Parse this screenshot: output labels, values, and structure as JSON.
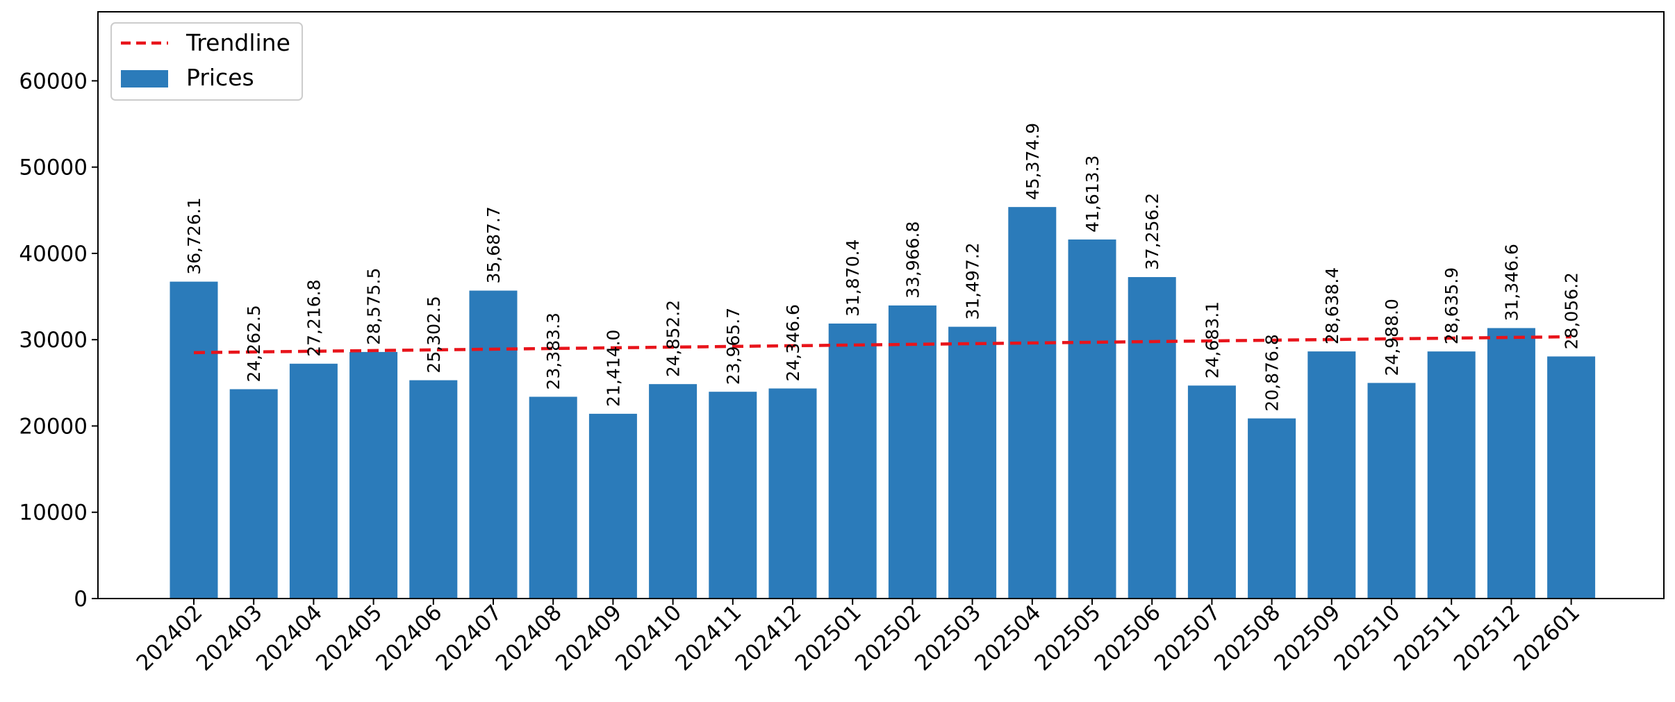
{
  "chart_data": {
    "type": "bar",
    "categories": [
      "202402",
      "202403",
      "202404",
      "202405",
      "202406",
      "202407",
      "202408",
      "202409",
      "202410",
      "202411",
      "202412",
      "202501",
      "202502",
      "202503",
      "202504",
      "202505",
      "202506",
      "202507",
      "202508",
      "202509",
      "202510",
      "202511",
      "202512",
      "202601"
    ],
    "series": [
      {
        "name": "Prices",
        "type": "bar",
        "color": "#2b7bba",
        "values": [
          36726.1,
          24262.5,
          27216.8,
          28575.5,
          25302.5,
          35687.7,
          23383.3,
          21414.0,
          24852.2,
          23965.7,
          24346.6,
          31870.4,
          33966.8,
          31497.2,
          45374.9,
          41613.3,
          37256.2,
          24683.1,
          20876.8,
          28638.4,
          24988.0,
          28635.9,
          31346.6,
          28056.2
        ],
        "data_labels": [
          "36,726.1",
          "24,262.5",
          "27,216.8",
          "28,575.5",
          "25,302.5",
          "35,687.7",
          "23,383.3",
          "21,414.0",
          "24,852.2",
          "23,965.7",
          "24,346.6",
          "31,870.4",
          "33,966.8",
          "31,497.2",
          "45,374.9",
          "41,613.3",
          "37,256.2",
          "24,683.1",
          "20,876.8",
          "28,638.4",
          "24,988.0",
          "28,635.9",
          "31,346.6",
          "28,056.2"
        ]
      },
      {
        "name": "Trendline",
        "type": "line",
        "style": "dashed",
        "color": "#e8141b",
        "values": [
          28500,
          28580,
          28660,
          28740,
          28820,
          28900,
          28980,
          29060,
          29140,
          29220,
          29300,
          29380,
          29460,
          29540,
          29620,
          29700,
          29780,
          29860,
          29940,
          30020,
          30100,
          30180,
          30260,
          30340
        ]
      }
    ],
    "yticks": [
      "0",
      "10000",
      "20000",
      "30000",
      "40000",
      "50000",
      "60000"
    ],
    "ylim": [
      0,
      68000
    ],
    "title": "",
    "xlabel": "",
    "ylabel": "",
    "grid": false,
    "legend": {
      "position": "top-left",
      "entries": [
        "Trendline",
        "Prices"
      ]
    }
  }
}
